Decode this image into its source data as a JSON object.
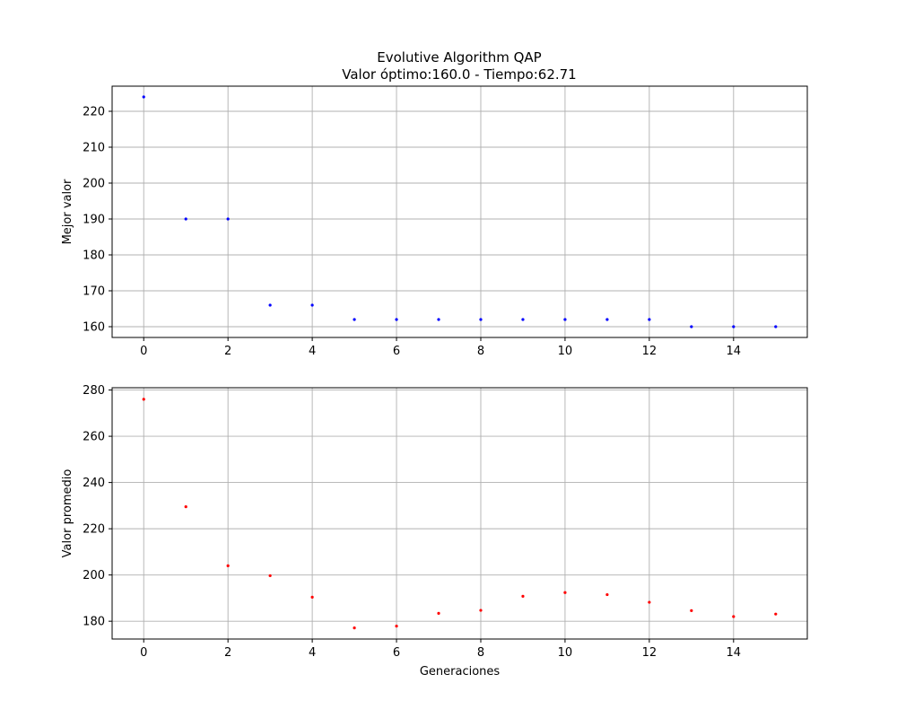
{
  "title": {
    "line1": "Evolutive Algorithm QAP",
    "line2": "Valor óptimo:160.0 - Tiempo:62.71"
  },
  "colors": {
    "grid": "#b0b0b0",
    "axes": "#000000"
  },
  "chart_data": [
    {
      "type": "scatter",
      "xlabel": "",
      "ylabel": "Mejor valor",
      "xlim": [
        -0.75,
        15.75
      ],
      "ylim": [
        157,
        227
      ],
      "xticks": [
        0,
        2,
        4,
        6,
        8,
        10,
        12,
        14
      ],
      "yticks": [
        160,
        170,
        180,
        190,
        200,
        210,
        220
      ],
      "grid": true,
      "color": "#0000ff",
      "x": [
        0,
        1,
        2,
        3,
        4,
        5,
        6,
        7,
        8,
        9,
        10,
        11,
        12,
        13,
        14,
        15
      ],
      "y": [
        224,
        190,
        190,
        166,
        166,
        162,
        162,
        162,
        162,
        162,
        162,
        162,
        162,
        160,
        160,
        160
      ]
    },
    {
      "type": "scatter",
      "xlabel": "Generaciones",
      "ylabel": "Valor promedio",
      "xlim": [
        -0.75,
        15.75
      ],
      "ylim": [
        172.3,
        281
      ],
      "xticks": [
        0,
        2,
        4,
        6,
        8,
        10,
        12,
        14
      ],
      "yticks": [
        180,
        200,
        220,
        240,
        260,
        280
      ],
      "grid": true,
      "color": "#ff0000",
      "x": [
        0,
        1,
        2,
        3,
        4,
        5,
        6,
        7,
        8,
        9,
        10,
        11,
        12,
        13,
        14,
        15
      ],
      "y": [
        276,
        229.5,
        204,
        199.7,
        190.4,
        177.1,
        177.9,
        183.4,
        184.7,
        190.8,
        192.4,
        191.5,
        188.2,
        184.6,
        182,
        183.1
      ]
    }
  ]
}
